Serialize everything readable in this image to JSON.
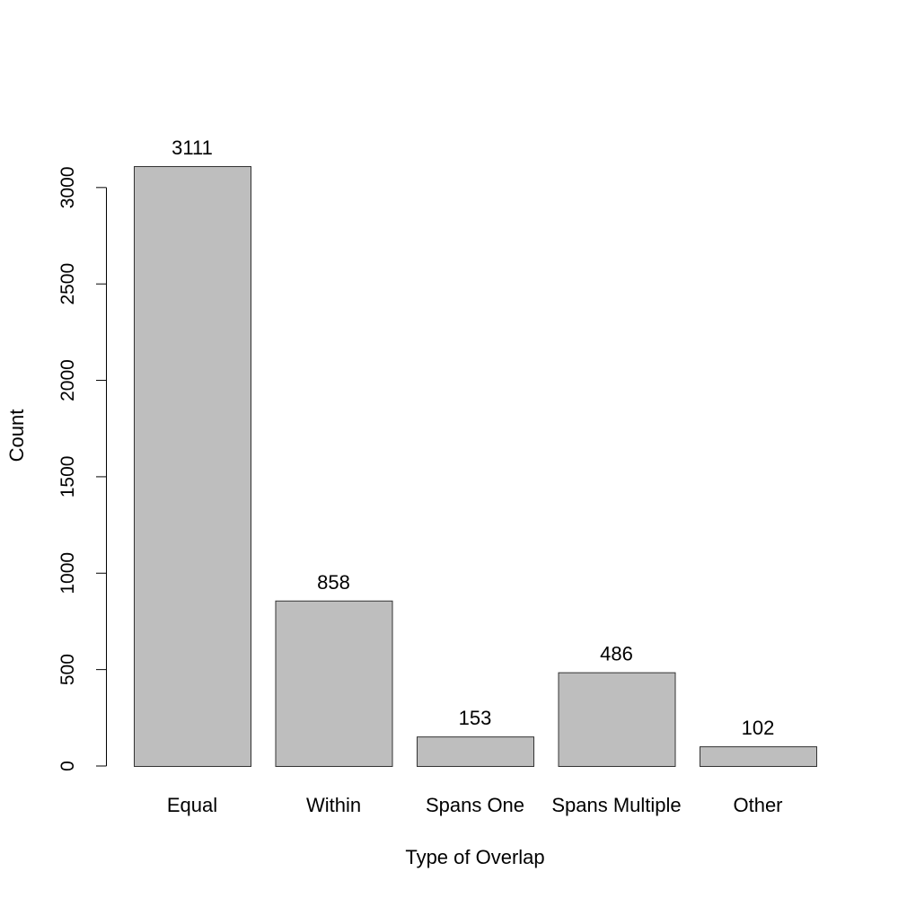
{
  "chart_data": {
    "type": "bar",
    "title": "",
    "xlabel": "Type of Overlap",
    "ylabel": "Count",
    "categories": [
      "Equal",
      "Within",
      "Spans One",
      "Spans Multiple",
      "Other"
    ],
    "values": [
      3111,
      858,
      153,
      486,
      102
    ],
    "data_labels": [
      "3111",
      "858",
      "153",
      "486",
      "102"
    ],
    "y_ticks": [
      0,
      500,
      1000,
      1500,
      2000,
      2500,
      3000
    ],
    "y_tick_labels": [
      "0",
      "500",
      "1000",
      "1500",
      "2000",
      "2500",
      "3000"
    ],
    "ylim": [
      0,
      3111
    ],
    "grid": false,
    "legend": "none",
    "colors": {
      "bar_fill": "#bebebe",
      "bar_stroke": "#333333",
      "axis": "#000000"
    }
  }
}
